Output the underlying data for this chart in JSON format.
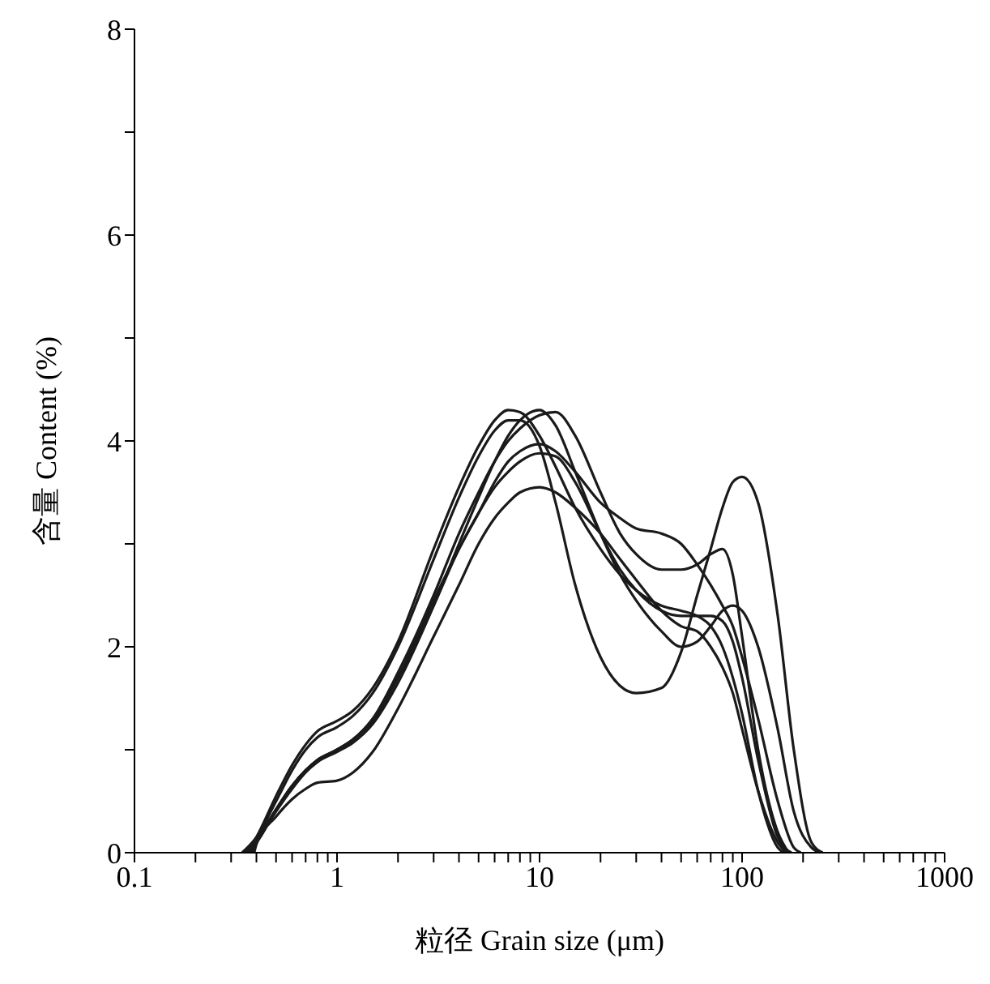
{
  "chart_data": {
    "type": "line",
    "xlabel": "粒径 Grain size (μm)",
    "ylabel": "含量 Content (%)",
    "log": "x",
    "grid": false,
    "marker": "none",
    "line_style": "solid",
    "xlim": [
      0.1,
      1000
    ],
    "xticks": [
      0.1,
      {
        "value": 0.2,
        "label": null
      },
      {
        "value": 0.3,
        "label": null
      },
      {
        "value": 0.4,
        "label": null
      },
      {
        "value": 0.5,
        "label": null
      },
      {
        "value": 0.6,
        "label": null
      },
      {
        "value": 0.7,
        "label": null
      },
      {
        "value": 0.8,
        "label": null
      },
      {
        "value": 0.9,
        "label": null
      },
      1,
      {
        "value": 2,
        "label": null
      },
      {
        "value": 3,
        "label": null
      },
      {
        "value": 4,
        "label": null
      },
      {
        "value": 5,
        "label": null
      },
      {
        "value": 6,
        "label": null
      },
      {
        "value": 7,
        "label": null
      },
      {
        "value": 8,
        "label": null
      },
      {
        "value": 9,
        "label": null
      },
      10,
      {
        "value": 20,
        "label": null
      },
      {
        "value": 30,
        "label": null
      },
      {
        "value": 40,
        "label": null
      },
      {
        "value": 50,
        "label": null
      },
      {
        "value": 60,
        "label": null
      },
      {
        "value": 70,
        "label": null
      },
      {
        "value": 80,
        "label": null
      },
      {
        "value": 90,
        "label": null
      },
      100,
      {
        "value": 200,
        "label": null
      },
      {
        "value": 300,
        "label": null
      },
      {
        "value": 400,
        "label": null
      },
      {
        "value": 500,
        "label": null
      },
      {
        "value": 600,
        "label": null
      },
      {
        "value": 700,
        "label": null
      },
      {
        "value": 800,
        "label": null
      },
      {
        "value": 900,
        "label": null
      },
      1000
    ],
    "ylim": [
      0,
      8
    ],
    "yticks": [
      0,
      {
        "value": 1,
        "label": null
      },
      2,
      {
        "value": 3,
        "label": null
      },
      4,
      {
        "value": 5,
        "label": null
      },
      6,
      {
        "value": 7,
        "label": null
      },
      8
    ],
    "series": [
      {
        "color": "#1a1a1a",
        "x": [
          0.36,
          0.4,
          0.5,
          0.6,
          0.7,
          0.8,
          1,
          1.2,
          1.5,
          2,
          3,
          4,
          5,
          6,
          7,
          8,
          10,
          12,
          15,
          20,
          25,
          30,
          40,
          50,
          60,
          70,
          80,
          90,
          100,
          120,
          150,
          160
        ],
        "values": [
          0,
          0.15,
          0.55,
          0.85,
          1.05,
          1.18,
          1.28,
          1.38,
          1.6,
          2.05,
          2.95,
          3.55,
          3.95,
          4.2,
          4.3,
          4.28,
          4.05,
          3.75,
          3.35,
          2.95,
          2.7,
          2.55,
          2.4,
          2.35,
          2.3,
          2.2,
          2.0,
          1.7,
          1.35,
          0.6,
          0.05,
          0
        ]
      },
      {
        "color": "#1a1a1a",
        "x": [
          0.34,
          0.4,
          0.5,
          0.6,
          0.7,
          0.8,
          1,
          1.2,
          1.5,
          2,
          3,
          4,
          5,
          6,
          7,
          8,
          10,
          12,
          15,
          20,
          25,
          30,
          40,
          50,
          60,
          70,
          80,
          90,
          100,
          120,
          150,
          180,
          220,
          250
        ],
        "values": [
          0,
          0.15,
          0.5,
          0.8,
          1.0,
          1.12,
          1.22,
          1.33,
          1.55,
          2.0,
          2.85,
          3.45,
          3.85,
          4.1,
          4.2,
          4.2,
          3.95,
          3.4,
          2.6,
          1.9,
          1.62,
          1.55,
          1.6,
          1.95,
          2.5,
          2.95,
          3.35,
          3.6,
          3.65,
          3.4,
          2.3,
          1.0,
          0.1,
          0
        ]
      },
      {
        "color": "#1a1a1a",
        "x": [
          0.37,
          0.4,
          0.5,
          0.6,
          0.7,
          0.8,
          1,
          1.2,
          1.5,
          2,
          3,
          4,
          5,
          6,
          7,
          8,
          10,
          12,
          15,
          20,
          25,
          30,
          40,
          50,
          60,
          70,
          80,
          90,
          100,
          120,
          150,
          180,
          220,
          240
        ],
        "values": [
          0,
          0.1,
          0.4,
          0.62,
          0.78,
          0.88,
          0.98,
          1.07,
          1.25,
          1.65,
          2.4,
          3.0,
          3.45,
          3.8,
          4.05,
          4.2,
          4.3,
          4.15,
          3.7,
          3.1,
          2.7,
          2.45,
          2.15,
          2.0,
          2.05,
          2.2,
          2.35,
          2.4,
          2.35,
          2.0,
          1.2,
          0.4,
          0.05,
          0
        ]
      },
      {
        "color": "#1a1a1a",
        "x": [
          0.38,
          0.4,
          0.5,
          0.6,
          0.7,
          0.8,
          1,
          1.2,
          1.5,
          2,
          3,
          4,
          5,
          6,
          7,
          8,
          10,
          12,
          15,
          20,
          25,
          30,
          40,
          50,
          60,
          70,
          80,
          90,
          100,
          120,
          150,
          170
        ],
        "values": [
          0,
          0.1,
          0.42,
          0.65,
          0.8,
          0.9,
          1.0,
          1.1,
          1.3,
          1.75,
          2.5,
          3.1,
          3.5,
          3.8,
          4.0,
          4.12,
          4.25,
          4.28,
          4.05,
          3.5,
          3.1,
          2.9,
          2.75,
          2.75,
          2.8,
          2.9,
          2.95,
          2.7,
          2.1,
          1.0,
          0.2,
          0
        ]
      },
      {
        "color": "#1a1a1a",
        "x": [
          0.35,
          0.4,
          0.5,
          0.6,
          0.7,
          0.8,
          1,
          1.2,
          1.5,
          2,
          3,
          4,
          5,
          6,
          7,
          8,
          10,
          12,
          15,
          20,
          25,
          30,
          40,
          50,
          60,
          70,
          80,
          90,
          100,
          120,
          150,
          180,
          195
        ],
        "values": [
          0,
          0.1,
          0.42,
          0.65,
          0.8,
          0.9,
          1.0,
          1.1,
          1.28,
          1.7,
          2.4,
          2.95,
          3.3,
          3.6,
          3.8,
          3.9,
          3.97,
          3.9,
          3.7,
          3.4,
          3.25,
          3.15,
          3.1,
          3.0,
          2.8,
          2.6,
          2.4,
          2.2,
          1.9,
          1.3,
          0.5,
          0.05,
          0
        ]
      },
      {
        "color": "#1a1a1a",
        "x": [
          0.39,
          0.4,
          0.5,
          0.6,
          0.7,
          0.8,
          1,
          1.2,
          1.5,
          2,
          3,
          4,
          5,
          6,
          7,
          8,
          10,
          12,
          15,
          20,
          25,
          30,
          40,
          50,
          60,
          70,
          80,
          90,
          100,
          120,
          150,
          165
        ],
        "values": [
          0,
          0.08,
          0.35,
          0.52,
          0.62,
          0.68,
          0.7,
          0.78,
          0.98,
          1.4,
          2.1,
          2.6,
          3.0,
          3.25,
          3.4,
          3.5,
          3.55,
          3.5,
          3.35,
          3.1,
          2.85,
          2.65,
          2.35,
          2.2,
          2.15,
          2.0,
          1.8,
          1.55,
          1.2,
          0.6,
          0.1,
          0
        ]
      },
      {
        "color": "#1a1a1a",
        "x": [
          0.355,
          0.4,
          0.5,
          0.6,
          0.7,
          0.8,
          1,
          1.2,
          1.5,
          2,
          3,
          4,
          5,
          6,
          7,
          8,
          10,
          12,
          15,
          20,
          25,
          30,
          40,
          50,
          60,
          70,
          80,
          90,
          100,
          120,
          150,
          175
        ],
        "values": [
          0,
          0.1,
          0.42,
          0.65,
          0.8,
          0.9,
          1.0,
          1.1,
          1.3,
          1.7,
          2.45,
          2.95,
          3.3,
          3.55,
          3.7,
          3.8,
          3.88,
          3.85,
          3.6,
          3.1,
          2.75,
          2.55,
          2.35,
          2.3,
          2.3,
          2.3,
          2.25,
          2.05,
          1.7,
          0.9,
          0.15,
          0
        ]
      }
    ]
  }
}
